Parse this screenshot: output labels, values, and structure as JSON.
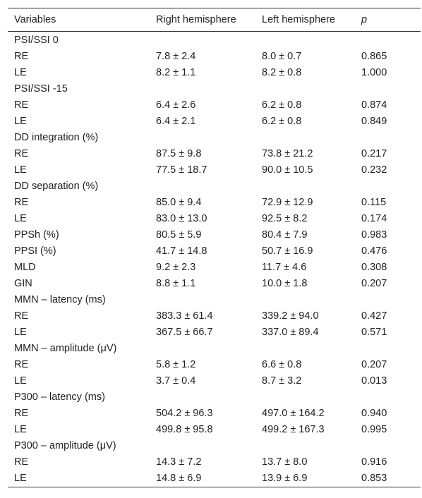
{
  "table": {
    "headers": [
      "Variables",
      "Right hemisphere",
      "Left hemisphere",
      "p"
    ],
    "rows": [
      [
        "PSI/SSI 0",
        "",
        "",
        ""
      ],
      [
        "RE",
        "7.8 ± 2.4",
        "8.0 ± 0.7",
        "0.865"
      ],
      [
        "LE",
        "8.2 ± 1.1",
        "8.2 ± 0.8",
        "1.000"
      ],
      [
        "PSI/SSI -15",
        "",
        "",
        ""
      ],
      [
        "RE",
        "6.4 ± 2.6",
        "6.2 ± 0.8",
        "0.874"
      ],
      [
        "LE",
        "6.4 ± 2.1",
        "6.2 ± 0.8",
        "0.849"
      ],
      [
        "DD integration (%)",
        "",
        "",
        ""
      ],
      [
        "RE",
        "87.5 ± 9.8",
        "73.8 ± 21.2",
        "0.217"
      ],
      [
        "LE",
        "77.5 ± 18.7",
        "90.0 ± 10.5",
        "0.232"
      ],
      [
        "DD separation (%)",
        "",
        "",
        ""
      ],
      [
        "RE",
        "85.0 ± 9.4",
        "72.9 ± 12.9",
        "0.115"
      ],
      [
        "LE",
        "83.0 ± 13.0",
        "92.5 ± 8.2",
        "0.174"
      ],
      [
        "PPSh (%)",
        "80.5 ± 5.9",
        "80.4 ± 7.9",
        "0.983"
      ],
      [
        "PPSI (%)",
        "41.7 ± 14.8",
        "50.7 ± 16.9",
        "0.476"
      ],
      [
        "MLD",
        "9.2 ± 2.3",
        "11.7 ± 4.6",
        "0.308"
      ],
      [
        "GIN",
        "8.8 ± 1.1",
        "10.0 ± 1.8",
        "0.207"
      ],
      [
        "MMN – latency (ms)",
        "",
        "",
        ""
      ],
      [
        "RE",
        "383.3 ± 61.4",
        "339.2 ± 94.0",
        "0.427"
      ],
      [
        "LE",
        "367.5 ± 66.7",
        "337.0 ± 89.4",
        "0.571"
      ],
      [
        "MMN – amplitude (μV)",
        "",
        "",
        ""
      ],
      [
        "RE",
        "5.8 ± 1.2",
        "6.6 ± 0.8",
        "0.207"
      ],
      [
        "LE",
        "3.7 ± 0.4",
        "8.7 ± 3.2",
        "0.013"
      ],
      [
        "P300 – latency (ms)",
        "",
        "",
        ""
      ],
      [
        "RE",
        "504.2 ± 96.3",
        "497.0 ± 164.2",
        "0.940"
      ],
      [
        "LE",
        "499.8 ± 95.8",
        "499.2 ± 167.3",
        "0.995"
      ],
      [
        "P300 – amplitude (μV)",
        "",
        "",
        ""
      ],
      [
        "RE",
        "14.3 ± 7.2",
        "13.7 ± 8.0",
        "0.916"
      ],
      [
        "LE",
        "14.8 ± 6.9",
        "13.9 ± 6.9",
        "0.853"
      ]
    ]
  }
}
